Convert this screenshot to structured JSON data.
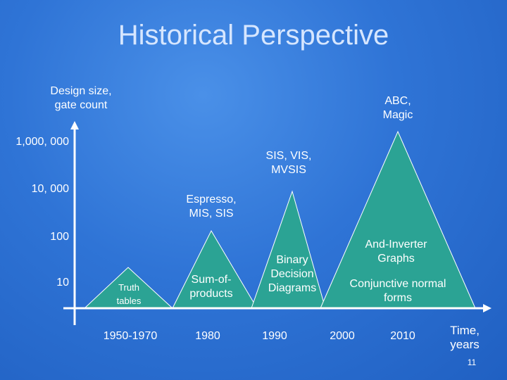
{
  "slide": {
    "title": "Historical Perspective",
    "page_number": "11",
    "y_axis_label": [
      "Design size,",
      "gate count"
    ],
    "x_axis_label": [
      "Time,",
      "years"
    ],
    "y_ticks": [
      "1,000, 000",
      "10, 000",
      "100",
      "10"
    ],
    "x_ticks": [
      "1950-1970",
      "1980",
      "1990",
      "2000",
      "2010"
    ],
    "peaks": [
      {
        "name": "truth-tables",
        "inside": [
          "Truth",
          "tables"
        ],
        "above": []
      },
      {
        "name": "sum-of-products",
        "inside": [
          "Sum-of-",
          "products"
        ],
        "above": [
          "Espresso,",
          "MIS, SIS"
        ]
      },
      {
        "name": "bdd",
        "inside": [
          "Binary",
          "Decision",
          "Diagrams"
        ],
        "above": [
          "SIS, VIS,",
          "MVSIS"
        ]
      },
      {
        "name": "aig",
        "inside": [
          "And-Inverter",
          "Graphs",
          "Conjunctive normal",
          "forms"
        ],
        "above": [
          "ABC,",
          "Magic"
        ]
      }
    ]
  },
  "colors": {
    "triangle": "#2ba394",
    "axis": "#ffffff",
    "title": "#d6e6ff"
  }
}
